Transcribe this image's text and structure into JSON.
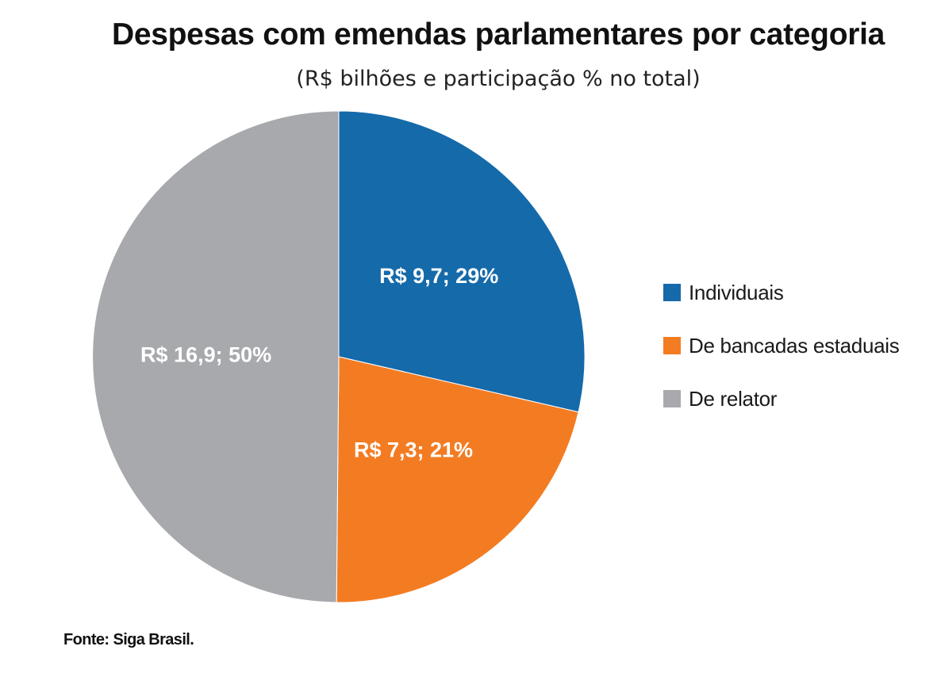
{
  "chart_data": {
    "type": "pie",
    "title": "Despesas com emendas parlamentares por categoria",
    "subtitle": "(R$ bilhões e participação % no total)",
    "unit": "R$ bilhões",
    "start": "12 o'clock, clockwise",
    "slices": [
      {
        "name": "Individuais",
        "value": 9.7,
        "percent": 29,
        "label": "R$ 9,7; 29%",
        "color": "#156aaa"
      },
      {
        "name": "De bancadas estaduais",
        "value": 7.3,
        "percent": 21,
        "label": "R$ 7,3; 21%",
        "color": "#f37c23"
      },
      {
        "name": "De relator",
        "value": 16.9,
        "percent": 50,
        "label": "R$ 16,9; 50%",
        "color": "#a8a9ad"
      }
    ],
    "legend": {
      "placement": "right",
      "items": [
        "Individuais",
        "De bancadas estaduais",
        "De relator"
      ]
    },
    "source": "Fonte: Siga Brasil."
  }
}
